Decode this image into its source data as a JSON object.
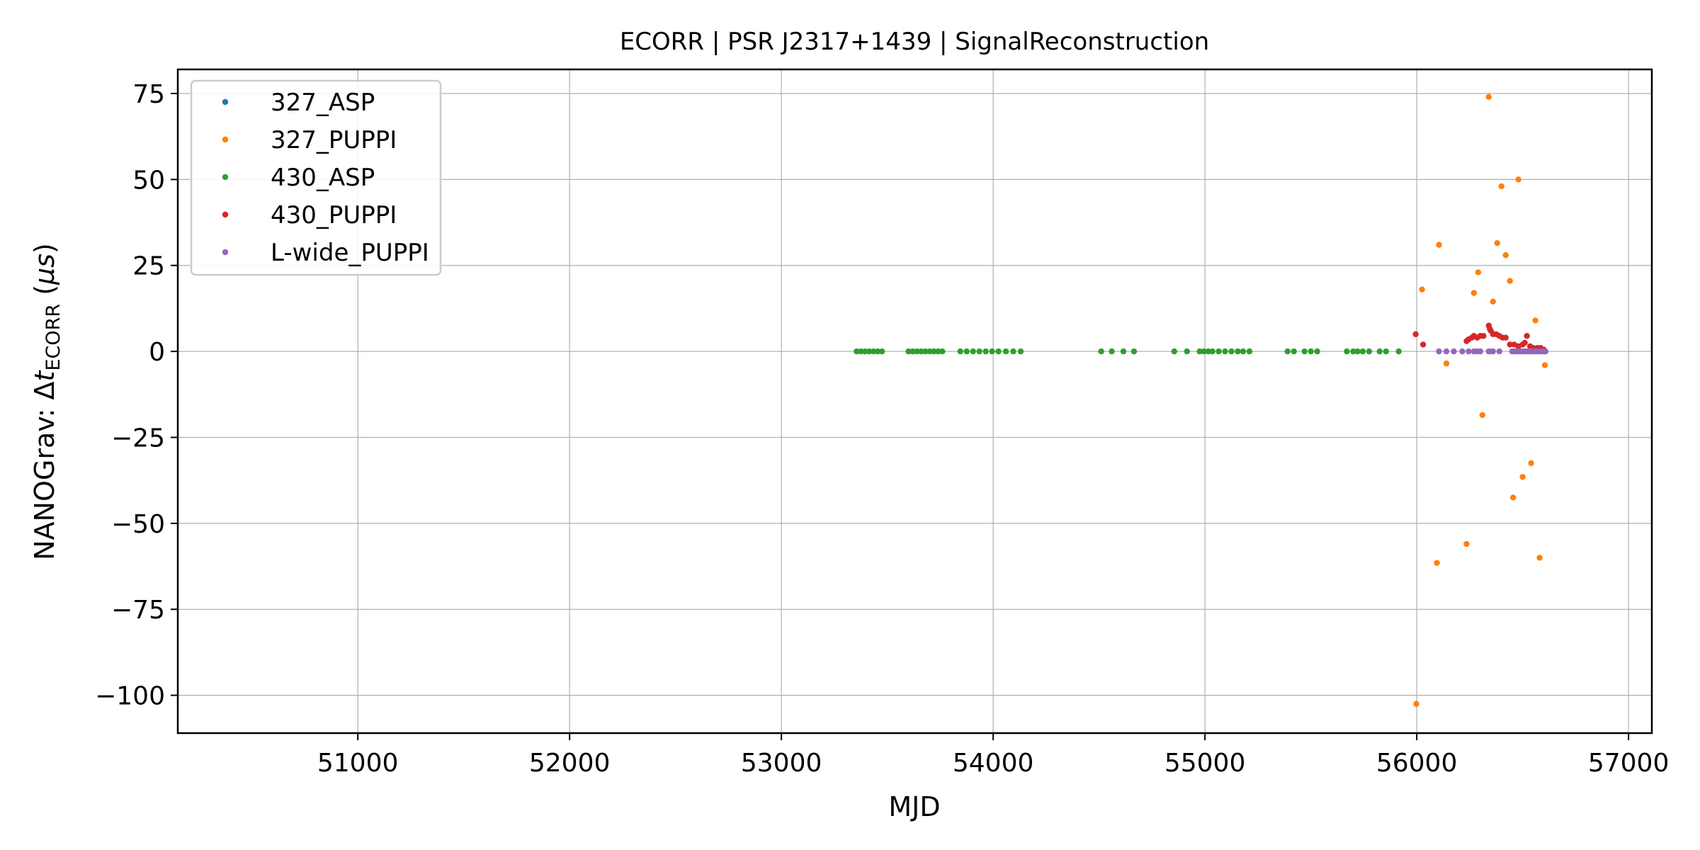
{
  "chart_data": {
    "type": "scatter",
    "title": "ECORR | PSR J2317+1439 | SignalReconstruction",
    "xlabel": "MJD",
    "ylabel": {
      "prefix": "NANOGrav: Δ",
      "var": "t",
      "sub": "ECORR",
      "suffix_open": " (",
      "unit": "μs",
      "suffix_close": ")"
    },
    "xlim": [
      50150,
      57110
    ],
    "ylim": [
      -111,
      82
    ],
    "x_ticks": [
      51000,
      52000,
      53000,
      54000,
      55000,
      56000,
      57000
    ],
    "x_tick_labels": [
      "51000",
      "52000",
      "53000",
      "54000",
      "55000",
      "56000",
      "57000"
    ],
    "y_ticks": [
      75,
      50,
      25,
      0,
      -25,
      -50,
      -75,
      -100
    ],
    "y_tick_labels": [
      "75",
      "50",
      "25",
      "0",
      "−25",
      "−50",
      "−75",
      "−100"
    ],
    "grid": true,
    "legend_position": "top-left",
    "series": [
      {
        "name": "327_ASP",
        "color": "#1f77b4",
        "x": [],
        "y": []
      },
      {
        "name": "327_PUPPI",
        "color": "#ff7f0e",
        "x": [
          55998,
          56025,
          56095,
          56105,
          56140,
          56235,
          56270,
          56290,
          56310,
          56340,
          56360,
          56380,
          56400,
          56420,
          56440,
          56455,
          56480,
          56500,
          56540,
          56560,
          56580,
          56605
        ],
        "y": [
          -102.5,
          18,
          -61.5,
          31,
          -3.5,
          -56,
          17,
          23,
          -18.5,
          74,
          14.5,
          31.5,
          48,
          28,
          20.5,
          -42.5,
          50,
          -36.5,
          -32.5,
          9,
          -60,
          -4
        ]
      },
      {
        "name": "430_ASP",
        "color": "#2ca02c",
        "x": [
          53355,
          53375,
          53395,
          53415,
          53435,
          53455,
          53475,
          53600,
          53620,
          53640,
          53660,
          53680,
          53700,
          53720,
          53740,
          53760,
          53845,
          53875,
          53905,
          53935,
          53965,
          53995,
          54025,
          54060,
          54095,
          54130,
          54510,
          54560,
          54615,
          54665,
          54855,
          54915,
          54975,
          54995,
          55015,
          55035,
          55065,
          55095,
          55125,
          55155,
          55180,
          55210,
          55390,
          55420,
          55470,
          55500,
          55530,
          55670,
          55700,
          55720,
          55745,
          55775,
          55825,
          55855,
          55915
        ],
        "y": [
          0,
          0,
          0,
          0,
          0,
          0,
          0,
          0,
          0,
          0,
          0,
          0,
          0,
          0,
          0,
          0,
          0,
          0,
          0,
          0,
          0,
          0,
          0,
          0,
          0,
          0,
          0,
          0,
          0,
          0,
          0,
          0,
          0,
          0,
          0,
          0,
          0,
          0,
          0,
          0,
          0,
          0,
          0,
          0,
          0,
          0,
          0,
          0,
          0,
          0,
          0,
          0,
          0,
          0,
          0
        ]
      },
      {
        "name": "430_PUPPI",
        "color": "#d62728",
        "x": [
          55995,
          56030,
          56235,
          56245,
          56260,
          56270,
          56285,
          56300,
          56315,
          56340,
          56345,
          56350,
          56360,
          56375,
          56390,
          56405,
          56420,
          56440,
          56460,
          56480,
          56500,
          56510,
          56520,
          56535,
          56550,
          56570,
          56585,
          56600
        ],
        "y": [
          5,
          2,
          3,
          3.5,
          4,
          4.5,
          4,
          4.5,
          4.5,
          7.5,
          6.5,
          6,
          5,
          5,
          4.5,
          4,
          4,
          2,
          2,
          1.5,
          2,
          2.5,
          4.5,
          1.5,
          1,
          1,
          1,
          0.5
        ]
      },
      {
        "name": "L-wide_PUPPI",
        "color": "#9467bd",
        "x": [
          56105,
          56140,
          56175,
          56215,
          56245,
          56270,
          56285,
          56300,
          56340,
          56355,
          56360,
          56390,
          56450,
          56460,
          56470,
          56480,
          56490,
          56500,
          56510,
          56520,
          56530,
          56540,
          56550,
          56560,
          56570,
          56580,
          56590,
          56600,
          56608
        ],
        "y": [
          0,
          0,
          0,
          0,
          0,
          0,
          0,
          0,
          0,
          0,
          0,
          0,
          0,
          0,
          0,
          0,
          0,
          0,
          0,
          0,
          0,
          0,
          0,
          0,
          0,
          0,
          0,
          0,
          0
        ]
      }
    ]
  }
}
